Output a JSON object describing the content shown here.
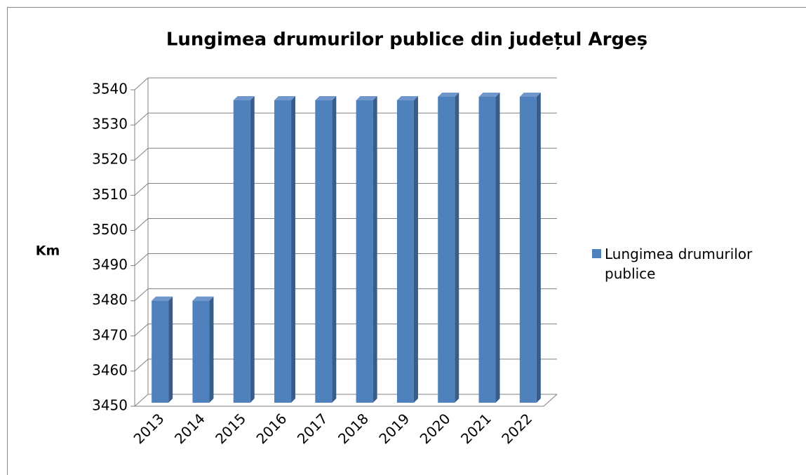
{
  "chart_data": {
    "type": "bar3d",
    "title": "Lungimea drumurilor publice din județul Argeș",
    "y_label": "Km",
    "categories": [
      "2013",
      "2014",
      "2015",
      "2016",
      "2017",
      "2018",
      "2019",
      "2020",
      "2021",
      "2022"
    ],
    "series": [
      {
        "name": "Lungimea drumurilor publice",
        "color": "#4f81bd",
        "values": [
          3479,
          3479,
          3536,
          3536,
          3536,
          3536,
          3536,
          3537,
          3537,
          3537
        ]
      }
    ],
    "ylim": [
      3450,
      3540
    ],
    "yticks": [
      3450,
      3460,
      3470,
      3480,
      3490,
      3500,
      3510,
      3520,
      3530,
      3540
    ],
    "grid": true,
    "legend": "right"
  }
}
